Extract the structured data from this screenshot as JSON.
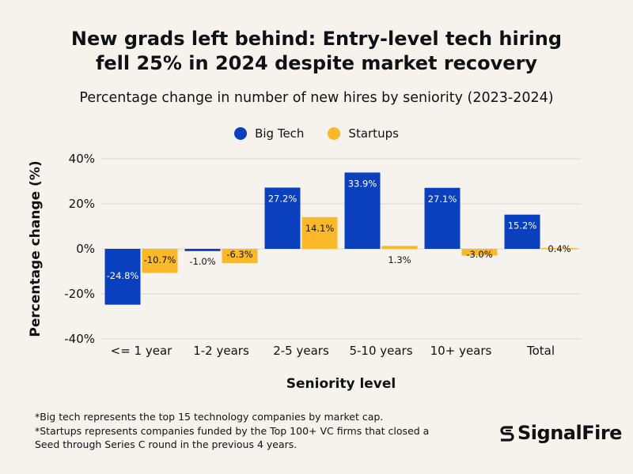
{
  "title_lines": [
    "New grads left behind: Entry-level tech hiring",
    "fell 25% in 2024 despite market recovery"
  ],
  "subtitle": "Percentage change in number of new hires by seniority (2023-2024)",
  "legend": [
    {
      "label": "Big Tech",
      "color": "#0a3fbd"
    },
    {
      "label": "Startups",
      "color": "#fbb828"
    }
  ],
  "footnotes": [
    "*Big tech represents the top 15 technology companies by market cap.",
    "*Startups represents companies funded by the Top 100+ VC firms that closed a",
    "Seed through Series C round in the previous 4 years."
  ],
  "logo_text": "SignalFire",
  "chart_data": {
    "type": "bar",
    "title": "New grads left behind: Entry-level tech hiring fell 25% in 2024 despite market recovery",
    "subtitle": "Percentage change in number of new hires by seniority (2023-2024)",
    "xlabel": "Seniority level",
    "ylabel": "Percentage change (%)",
    "categories": [
      "<= 1 year",
      "1-2 years",
      "2-5 years",
      "5-10 years",
      "10+ years",
      "Total"
    ],
    "series": [
      {
        "name": "Big Tech",
        "color": "#0a3fbd",
        "values": [
          -24.8,
          -1.0,
          27.2,
          33.9,
          27.1,
          15.2
        ],
        "labels": [
          "-24.8%",
          "-1.0%",
          "27.2%",
          "33.9%",
          "27.1%",
          "15.2%"
        ]
      },
      {
        "name": "Startups",
        "color": "#fbb828",
        "values": [
          -10.7,
          -6.3,
          14.1,
          1.3,
          -3.0,
          0.4
        ],
        "labels": [
          "-10.7%",
          "-6.3%",
          "14.1%",
          "1.3%",
          "-3.0%",
          "0.4%"
        ]
      }
    ],
    "ylim": [
      -40,
      40
    ],
    "yticks": [
      40,
      20,
      0,
      -20,
      -40
    ],
    "ytick_labels": [
      "40%",
      "20%",
      "0%",
      "-20%",
      "-40%"
    ],
    "grid": true,
    "legend_position": "top"
  }
}
